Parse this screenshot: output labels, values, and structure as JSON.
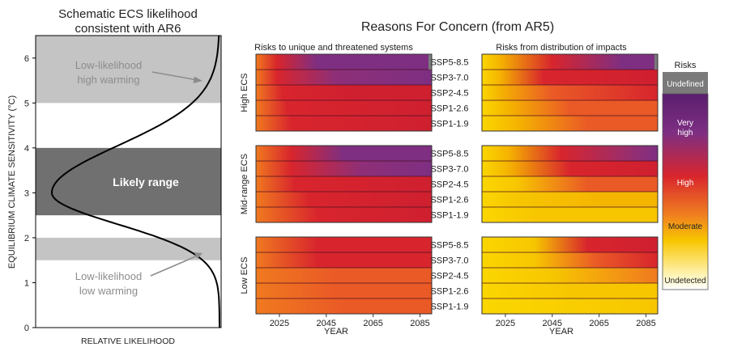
{
  "ecs_panel": {
    "title_line1": "Schematic ECS likelihood",
    "title_line2": "consistent with AR6",
    "ylabel": "EQUILIBRIUM CLIMATE SENSITIVITY (°C)",
    "xlabel": "RELATIVE LIKELIHOOD",
    "likely_label": "Likely range",
    "low_label_line1": "Low-likelihood",
    "low_label_line2": "low warming",
    "high_label_line1": "Low-likelihood",
    "high_label_line2": "high warming"
  },
  "rfc": {
    "title": "Reasons For Concern (from AR5)",
    "col_titles": [
      "Risks to unique and threatened systems",
      "Risks from distribution of impacts"
    ],
    "row_labels": [
      "High ECS",
      "Mid-range ECS",
      "Low ECS"
    ],
    "scenarios": [
      "SSP5-8.5",
      "SSP3-7.0",
      "SSP2-4.5",
      "SSP1-2.6",
      "SSP1-1.9"
    ],
    "year_ticks": [
      "2025",
      "2045",
      "2065",
      "2085"
    ],
    "xlabel": "YEAR"
  },
  "legend": {
    "title": "Risks",
    "levels": [
      "Undefined",
      "Very high",
      "High",
      "Moderate",
      "Undetected"
    ],
    "colors": {
      "undefined": "#7a7a7a",
      "very_high": "#7e2f82",
      "high": "#d8252d",
      "moderate": "#f7c600",
      "undetected": "#ffffff"
    }
  },
  "chart_data": [
    {
      "type": "area",
      "title": "Schematic ECS likelihood consistent with AR6",
      "xlabel": "RELATIVE LIKELIHOOD",
      "ylabel": "EQUILIBRIUM CLIMATE SENSITIVITY (°C)",
      "ylim": [
        0,
        6.5
      ],
      "yticks": [
        0,
        1,
        2,
        3,
        4,
        5,
        6
      ],
      "distribution": {
        "peak_ecs": 3.0,
        "width_below": 0.7,
        "width_above": 1.05
      },
      "shaded_ranges": [
        {
          "name": "Likely range",
          "from": 2.5,
          "to": 4.0
        },
        {
          "name": "Low-likelihood low warming",
          "from": 1.5,
          "to": 2.0
        },
        {
          "name": "Low-likelihood high warming",
          "from": 5.0,
          "to": 6.5
        }
      ]
    },
    {
      "type": "heatmap",
      "title": "Reasons For Concern (from AR5)",
      "xlabel": "YEAR",
      "xlim": [
        2015,
        2090
      ],
      "row_groups": [
        "High ECS",
        "Mid-range ECS",
        "Low ECS"
      ],
      "columns": [
        "Risks to unique and threatened systems",
        "Risks from distribution of impacts"
      ],
      "scenarios": [
        "SSP5-8.5",
        "SSP3-7.0",
        "SSP2-4.5",
        "SSP1-2.6",
        "SSP1-1.9"
      ],
      "risk_scale": {
        "0": "Undetected",
        "1": "Moderate",
        "2": "High",
        "3": "Very high",
        "4": "Undefined"
      }
    }
  ]
}
